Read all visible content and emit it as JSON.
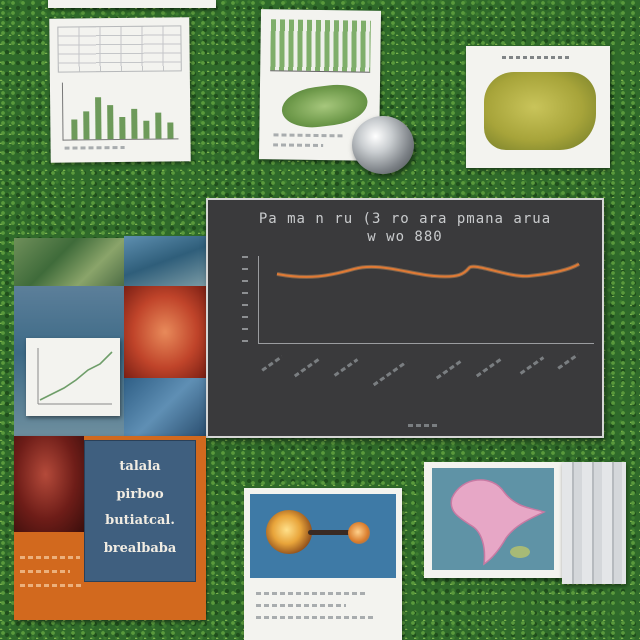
{
  "scene": {
    "description_colors": {
      "grass_light": "#5a9a3c",
      "grass_dark": "#1f4e1c",
      "chart_panel": "#3a3a3c",
      "chart_line": "#e07a35",
      "poster_blue": "#3f5f7f",
      "poster_orange": "#d2691e"
    }
  },
  "chart_panel": {
    "title_line_1": "Pa ma n ru (3 ro ara pmana arua",
    "title_line_2": "w wo 880"
  },
  "poster": {
    "line_1": "talala",
    "line_2": "pirboo",
    "line_3": "butiatcal.",
    "line_4": "brealbaba"
  },
  "icons": {
    "glass_object": "glass-paperweight-icon"
  }
}
